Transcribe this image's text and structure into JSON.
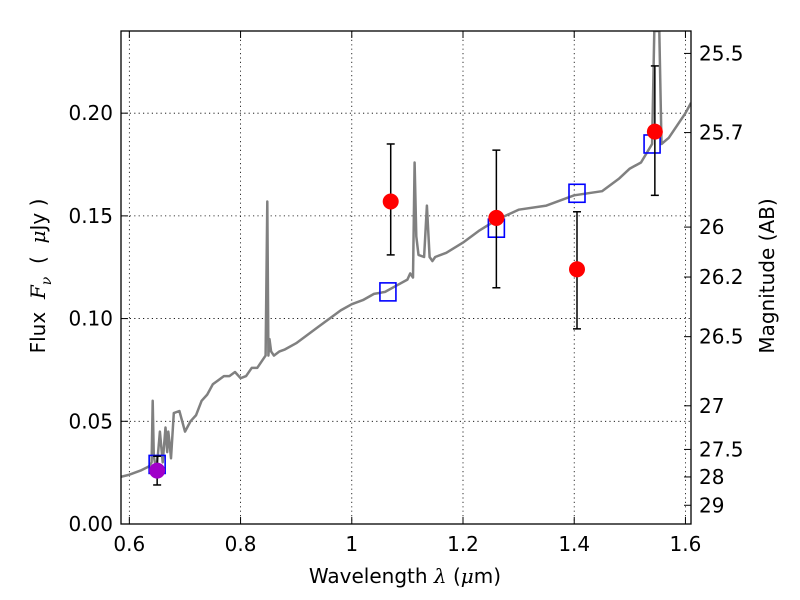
{
  "chart_data": {
    "type": "scatter",
    "xlabel": "Wavelength",
    "xlabel_symbol": "λ",
    "xlabel_unit_open": " (",
    "xlabel_unit_mu": "μ",
    "xlabel_unit_rest": "m)",
    "ylabel": "Flux",
    "ylabel_symbol": "F",
    "ylabel_symbol_sub": "ν",
    "ylabel_unit_open": "(",
    "ylabel_unit_mu": "μ",
    "ylabel_unit_rest": "Jy )",
    "y2label": "Magnitude (AB)",
    "xlim": [
      0.585,
      1.61
    ],
    "ylim": [
      0.0,
      0.24
    ],
    "grid": true,
    "x_ticks": [
      {
        "value": 0.6,
        "label": "0.6"
      },
      {
        "value": 0.8,
        "label": "0.8"
      },
      {
        "value": 1.0,
        "label": "1"
      },
      {
        "value": 1.2,
        "label": "1.2"
      },
      {
        "value": 1.4,
        "label": "1.4"
      },
      {
        "value": 1.6,
        "label": "1.6"
      }
    ],
    "y_ticks": [
      {
        "value": 0.0,
        "label": "0.00"
      },
      {
        "value": 0.05,
        "label": "0.05"
      },
      {
        "value": 0.1,
        "label": "0.10"
      },
      {
        "value": 0.15,
        "label": "0.15"
      },
      {
        "value": 0.2,
        "label": "0.20"
      }
    ],
    "y2_ticks": [
      {
        "value": 25.5,
        "label": "25.5"
      },
      {
        "value": 25.7,
        "label": "25.7"
      },
      {
        "value": 26.0,
        "label": "26"
      },
      {
        "value": 26.2,
        "label": "26.2"
      },
      {
        "value": 26.5,
        "label": "26.5"
      },
      {
        "value": 27.0,
        "label": "27"
      },
      {
        "value": 27.5,
        "label": "27.5"
      },
      {
        "value": 28.0,
        "label": "28"
      },
      {
        "value": 29.0,
        "label": "29"
      }
    ],
    "series": [
      {
        "type": "line",
        "color": "#808080",
        "x": [
          0.585,
          0.6,
          0.62,
          0.635,
          0.64,
          0.642,
          0.644,
          0.646,
          0.65,
          0.655,
          0.66,
          0.665,
          0.668,
          0.67,
          0.672,
          0.675,
          0.68,
          0.69,
          0.7,
          0.71,
          0.72,
          0.73,
          0.74,
          0.75,
          0.76,
          0.77,
          0.78,
          0.79,
          0.8,
          0.81,
          0.82,
          0.83,
          0.84,
          0.845,
          0.848,
          0.85,
          0.852,
          0.855,
          0.86,
          0.87,
          0.88,
          0.9,
          0.92,
          0.94,
          0.96,
          0.98,
          1.0,
          1.02,
          1.04,
          1.06,
          1.08,
          1.1,
          1.105,
          1.11,
          1.113,
          1.116,
          1.12,
          1.13,
          1.135,
          1.14,
          1.145,
          1.15,
          1.17,
          1.2,
          1.23,
          1.26,
          1.3,
          1.35,
          1.4,
          1.45,
          1.48,
          1.5,
          1.52,
          1.54,
          1.544,
          1.547,
          1.55,
          1.553,
          1.557,
          1.57,
          1.6,
          1.61
        ],
        "y": [
          0.023,
          0.024,
          0.026,
          0.028,
          0.03,
          0.06,
          0.033,
          0.03,
          0.029,
          0.045,
          0.03,
          0.047,
          0.035,
          0.045,
          0.04,
          0.032,
          0.054,
          0.055,
          0.045,
          0.05,
          0.053,
          0.06,
          0.063,
          0.068,
          0.07,
          0.072,
          0.072,
          0.074,
          0.071,
          0.072,
          0.076,
          0.076,
          0.08,
          0.082,
          0.157,
          0.082,
          0.09,
          0.084,
          0.082,
          0.084,
          0.085,
          0.088,
          0.092,
          0.096,
          0.1,
          0.104,
          0.107,
          0.109,
          0.112,
          0.113,
          0.116,
          0.119,
          0.122,
          0.12,
          0.176,
          0.14,
          0.131,
          0.13,
          0.155,
          0.13,
          0.128,
          0.13,
          0.132,
          0.137,
          0.143,
          0.148,
          0.153,
          0.155,
          0.16,
          0.162,
          0.168,
          0.173,
          0.176,
          0.185,
          0.24,
          0.24,
          0.24,
          0.24,
          0.185,
          0.188,
          0.2,
          0.205
        ]
      },
      {
        "type": "markers",
        "marker": "square-open",
        "color": "#0000ff",
        "x": [
          0.65,
          1.065,
          1.26,
          1.405,
          1.54
        ],
        "y": [
          0.029,
          0.113,
          0.144,
          0.161,
          0.185
        ]
      },
      {
        "type": "errorbar",
        "marker": "circle",
        "color": "#ff0000",
        "error_color": "#000000",
        "x": [
          1.07,
          1.26,
          1.405,
          1.545
        ],
        "y": [
          0.157,
          0.149,
          0.124,
          0.191
        ],
        "y_low": [
          0.131,
          0.115,
          0.095,
          0.16
        ],
        "y_high": [
          0.185,
          0.182,
          0.152,
          0.223
        ]
      },
      {
        "type": "errorbar",
        "marker": "circle",
        "color": "#a000c8",
        "error_color": "#000000",
        "x": [
          0.65
        ],
        "y": [
          0.026
        ],
        "y_low": [
          0.019
        ],
        "y_high": [
          0.033
        ]
      }
    ]
  }
}
